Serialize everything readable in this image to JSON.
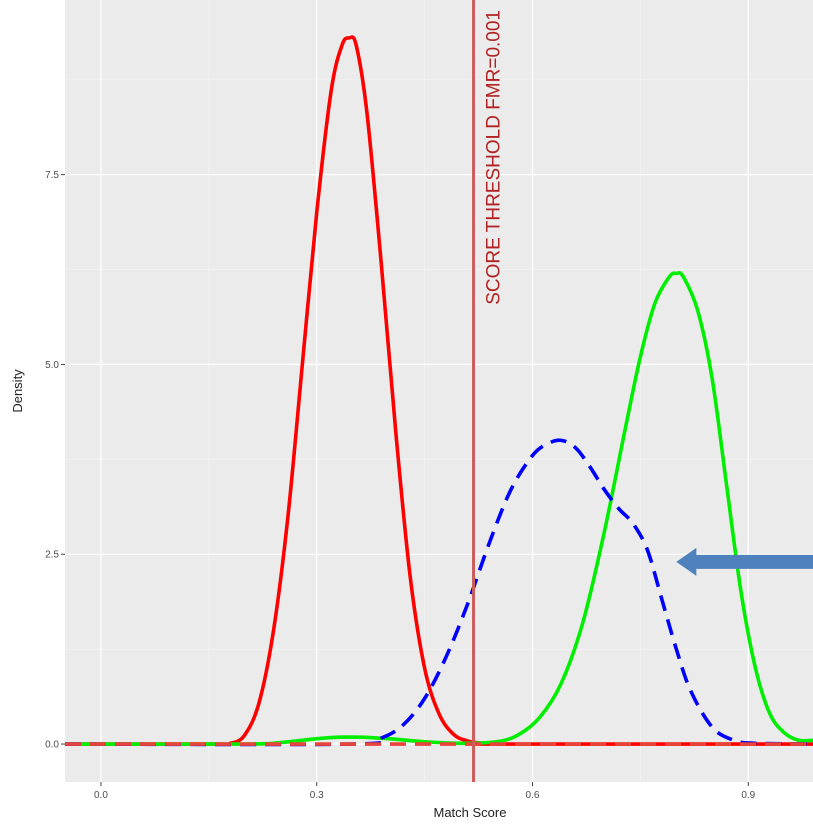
{
  "chart_data": {
    "type": "line",
    "title": "",
    "xlabel": "Match Score",
    "ylabel": "Density",
    "xlim": [
      -0.05,
      0.99
    ],
    "ylim": [
      -0.5,
      9.8
    ],
    "x_ticks": [
      {
        "value": 0.0,
        "label": "0.0"
      },
      {
        "value": 0.3,
        "label": "0.3"
      },
      {
        "value": 0.6,
        "label": "0.6"
      },
      {
        "value": 0.9,
        "label": "0.9"
      }
    ],
    "y_ticks": [
      {
        "value": 0.0,
        "label": "0.0"
      },
      {
        "value": 2.5,
        "label": "2.5"
      },
      {
        "value": 5.0,
        "label": "5.0"
      },
      {
        "value": 7.5,
        "label": "7.5"
      }
    ],
    "grid": true,
    "legend": "none",
    "background": "#ebebeb",
    "series": [
      {
        "color": "#ff0000",
        "dash": "solid",
        "x": [
          -0.05,
          0.15,
          0.18,
          0.2,
          0.22,
          0.24,
          0.26,
          0.28,
          0.3,
          0.32,
          0.335,
          0.345,
          0.355,
          0.37,
          0.39,
          0.41,
          0.43,
          0.45,
          0.47,
          0.49,
          0.51,
          0.53,
          0.55,
          0.99
        ],
        "y": [
          0,
          0,
          0.01,
          0.12,
          0.55,
          1.5,
          3.0,
          5.0,
          7.0,
          8.6,
          9.2,
          9.3,
          9.2,
          8.3,
          6.3,
          4.1,
          2.2,
          1.0,
          0.4,
          0.13,
          0.04,
          0.01,
          0,
          0
        ]
      },
      {
        "color": "#00ee00",
        "dash": "solid",
        "x": [
          -0.05,
          0.2,
          0.25,
          0.3,
          0.33,
          0.36,
          0.4,
          0.45,
          0.5,
          0.55,
          0.58,
          0.61,
          0.64,
          0.67,
          0.7,
          0.73,
          0.75,
          0.77,
          0.79,
          0.8,
          0.81,
          0.83,
          0.85,
          0.87,
          0.89,
          0.91,
          0.93,
          0.95,
          0.97,
          0.99
        ],
        "y": [
          0,
          0,
          0.02,
          0.07,
          0.09,
          0.09,
          0.07,
          0.03,
          0.01,
          0.03,
          0.12,
          0.35,
          0.8,
          1.6,
          2.8,
          4.2,
          5.1,
          5.8,
          6.15,
          6.2,
          6.15,
          5.7,
          4.8,
          3.4,
          2.0,
          1.0,
          0.4,
          0.15,
          0.05,
          0.05
        ]
      },
      {
        "color": "#0000ff",
        "dash": "dashed",
        "x": [
          -0.05,
          0.35,
          0.39,
          0.42,
          0.45,
          0.48,
          0.51,
          0.54,
          0.57,
          0.6,
          0.62,
          0.64,
          0.66,
          0.68,
          0.7,
          0.72,
          0.74,
          0.76,
          0.78,
          0.8,
          0.82,
          0.85,
          0.88,
          0.91,
          0.99
        ],
        "y": [
          0,
          0,
          0.08,
          0.25,
          0.6,
          1.15,
          1.85,
          2.65,
          3.35,
          3.8,
          3.95,
          4.0,
          3.9,
          3.65,
          3.35,
          3.1,
          2.9,
          2.55,
          1.9,
          1.25,
          0.7,
          0.22,
          0.05,
          0.01,
          0
        ]
      },
      {
        "color": "#e8443a",
        "dash": "dashed",
        "x": [
          -0.05,
          0.99
        ],
        "y": [
          0,
          0
        ]
      }
    ],
    "annotations": [
      {
        "type": "vline",
        "x": 0.518,
        "color": "#cd5c5c",
        "label": "SCORE THRESHOLD FMR=0.001",
        "label_color": "#b22222"
      },
      {
        "type": "arrow",
        "direction": "left",
        "x": 0.8,
        "y": 2.4,
        "color": "#4f81bd"
      }
    ]
  }
}
